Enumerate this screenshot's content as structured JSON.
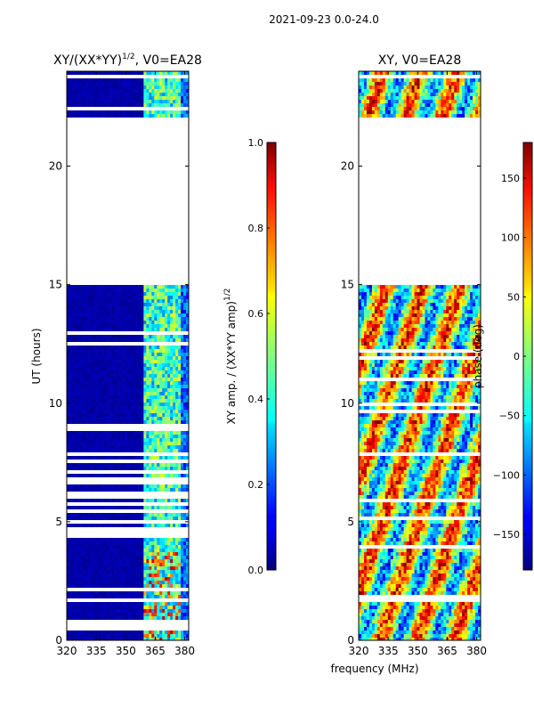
{
  "suptitle": "2021-09-23 0.0-24.0",
  "chart_data": [
    {
      "type": "heatmap",
      "title": "XY/(XX*YY)^1/2, V0=EA28",
      "title_main": "XY/(XX*YY)",
      "title_exp": "1/2",
      "title_suffix": ", V0=EA28",
      "ylabel": "UT (hours)",
      "xlabel": "",
      "x_range": [
        320,
        382
      ],
      "y_range": [
        0,
        24
      ],
      "x_ticks": [
        320,
        335,
        350,
        365,
        380
      ],
      "y_ticks": [
        0,
        5,
        10,
        15,
        20
      ],
      "data_gap_hours": [
        21.9,
        15.1
      ],
      "colorbar": {
        "label_main": "XY amp. / (XX*YY amp)",
        "label_exp": "1/2",
        "range": [
          0.0,
          1.0
        ],
        "ticks": [
          "0.0",
          "0.2",
          "0.4",
          "0.6",
          "0.8",
          "1.0"
        ]
      }
    },
    {
      "type": "heatmap",
      "title": "XY, V0=EA28",
      "ylabel": "",
      "xlabel": "frequency (MHz)",
      "x_range": [
        320,
        382
      ],
      "y_range": [
        0,
        24
      ],
      "x_ticks": [
        320,
        335,
        350,
        365,
        380
      ],
      "y_ticks": [
        0,
        5,
        10,
        15,
        20
      ],
      "data_gap_hours": [
        21.9,
        15.1
      ],
      "colorbar": {
        "label": "phase (deg)",
        "range": [
          -180,
          180
        ],
        "ticks": [
          "-150",
          "-100",
          "-50",
          "0",
          "50",
          "100",
          "150"
        ]
      }
    }
  ]
}
